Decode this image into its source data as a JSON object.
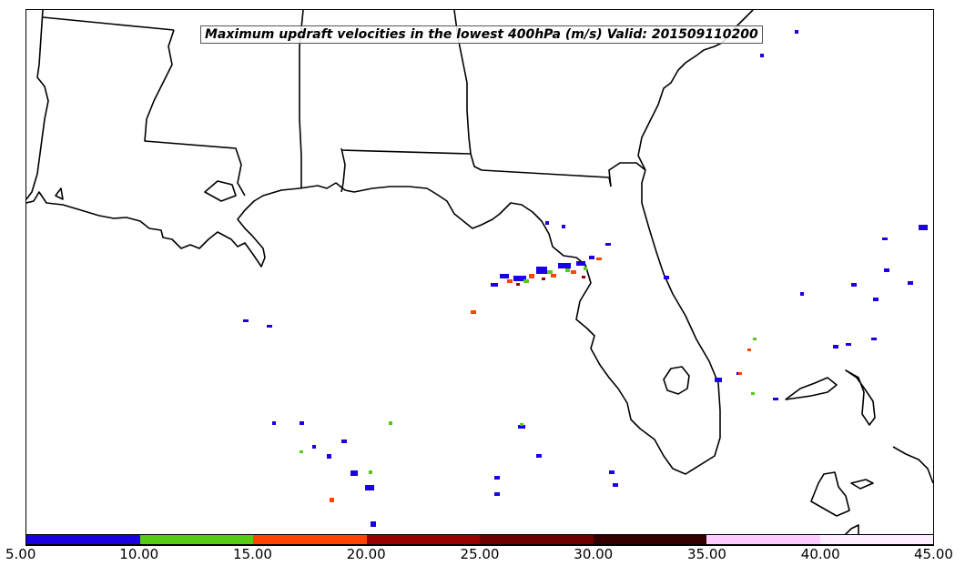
{
  "title": "Maximum updraft velocities in the lowest 400hPa (m/s) Valid: 201509110200",
  "colorbar": {
    "ticks": [
      "5.00",
      "10.00",
      "15.00",
      "20.00",
      "25.00",
      "30.00",
      "35.00",
      "40.00",
      "45.00"
    ],
    "colors": [
      "#1a00e0",
      "#55cc11",
      "#ff4400",
      "#990000",
      "#6e0000",
      "#330000",
      "#ffccff",
      "#ffeeff"
    ]
  },
  "map": {
    "land_color": "#ffffff",
    "water_color": "#ffffff",
    "boundary_color": "#000000"
  }
}
